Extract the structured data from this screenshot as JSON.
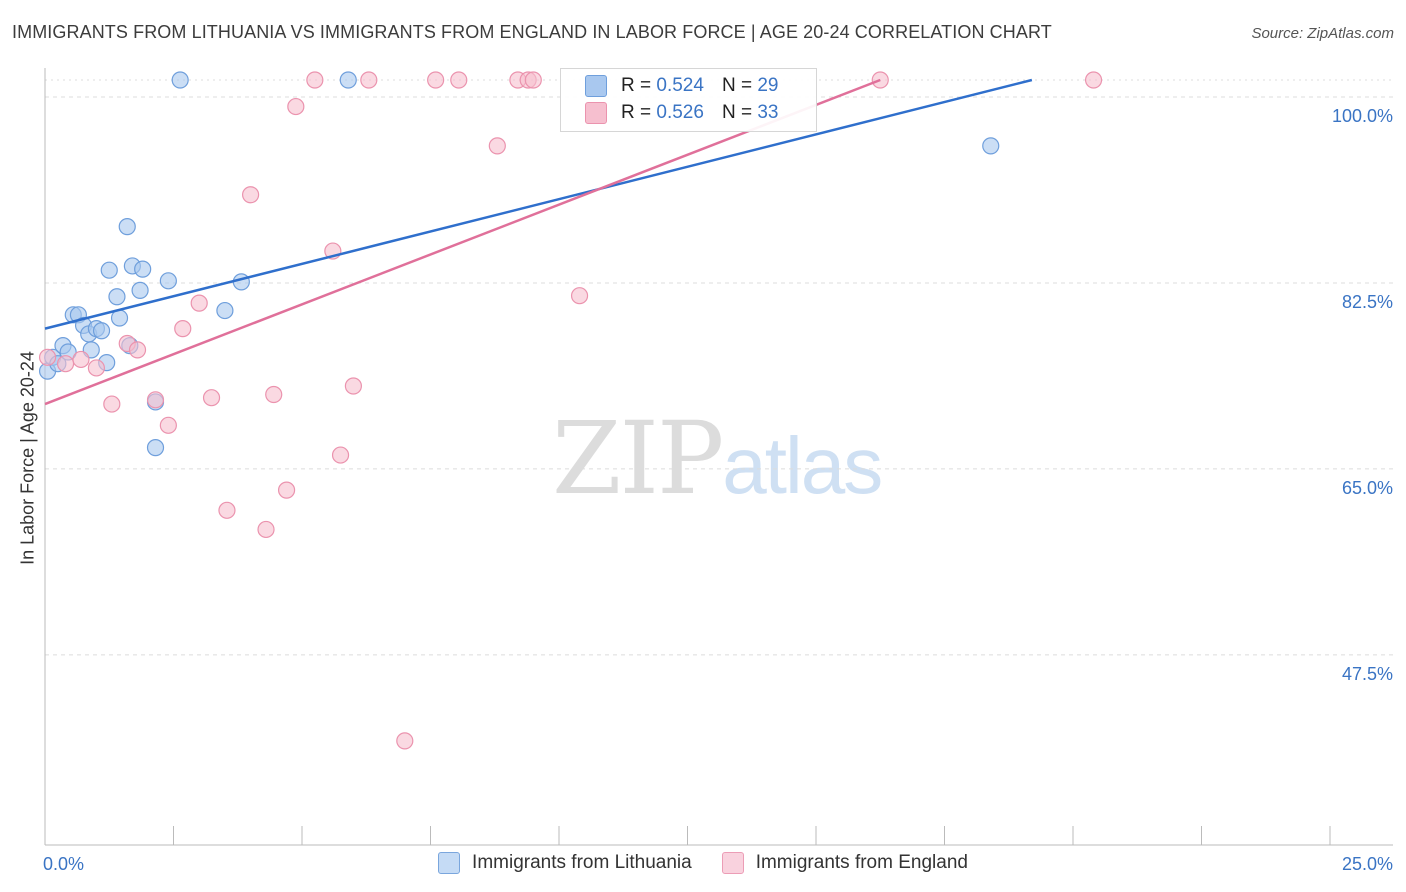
{
  "title": "IMMIGRANTS FROM LITHUANIA VS IMMIGRANTS FROM ENGLAND IN LABOR FORCE | AGE 20-24 CORRELATION CHART",
  "source": "Source: ZipAtlas.com",
  "watermark": {
    "zip": "ZIP",
    "atlas": "atlas"
  },
  "legend": {
    "rows": [
      {
        "r_label": "R = ",
        "r_value": "0.524",
        "n_label": "N = ",
        "n_value": "29"
      },
      {
        "r_label": "R = ",
        "r_value": "0.526",
        "n_label": "N = ",
        "n_value": "33"
      }
    ]
  },
  "colors": {
    "blue_fill": "#a9c8ef",
    "blue_stroke": "#6f9fdc",
    "blue_line": "#2f6fcc",
    "pink_fill": "#f6bfcf",
    "pink_stroke": "#eb93ae",
    "pink_line": "#e0709a",
    "tick_label": "#3a74c4",
    "grid": "#dcdcdc"
  },
  "chart_data": {
    "type": "scatter",
    "title": "IMMIGRANTS FROM LITHUANIA VS IMMIGRANTS FROM ENGLAND IN LABOR FORCE | AGE 20-24 CORRELATION CHART",
    "xlabel": "",
    "ylabel": "In Labor Force | Age 20-24",
    "xlim": [
      0,
      25
    ],
    "ylim": [
      29.6,
      101.6
    ],
    "x_tick_labels": [
      "0.0%",
      "25.0%"
    ],
    "y_ticks": [
      47.5,
      65.0,
      82.5,
      100.0
    ],
    "y_tick_labels": [
      "47.5%",
      "65.0%",
      "82.5%",
      "100.0%"
    ],
    "grid": "horizontal dashed",
    "series": [
      {
        "name": "Immigrants from Lithuania",
        "r": 0.524,
        "n": 29,
        "trend": {
          "x": [
            0.0,
            19.2
          ],
          "y": [
            78.2,
            101.6
          ]
        },
        "points": [
          {
            "x": 0.05,
            "y": 74.2
          },
          {
            "x": 0.15,
            "y": 75.5
          },
          {
            "x": 0.25,
            "y": 74.9
          },
          {
            "x": 0.35,
            "y": 76.6
          },
          {
            "x": 0.45,
            "y": 76.0
          },
          {
            "x": 0.55,
            "y": 79.5
          },
          {
            "x": 0.65,
            "y": 79.5
          },
          {
            "x": 0.75,
            "y": 78.5
          },
          {
            "x": 0.85,
            "y": 77.7
          },
          {
            "x": 0.9,
            "y": 76.2
          },
          {
            "x": 1.0,
            "y": 78.2
          },
          {
            "x": 1.1,
            "y": 78.0
          },
          {
            "x": 1.2,
            "y": 75.0
          },
          {
            "x": 1.25,
            "y": 83.7
          },
          {
            "x": 1.4,
            "y": 81.2
          },
          {
            "x": 1.45,
            "y": 79.2
          },
          {
            "x": 1.6,
            "y": 87.8
          },
          {
            "x": 1.65,
            "y": 76.6
          },
          {
            "x": 1.7,
            "y": 84.1
          },
          {
            "x": 1.85,
            "y": 81.8
          },
          {
            "x": 1.9,
            "y": 83.8
          },
          {
            "x": 2.15,
            "y": 71.3
          },
          {
            "x": 2.15,
            "y": 67.0
          },
          {
            "x": 2.4,
            "y": 82.7
          },
          {
            "x": 2.63,
            "y": 101.6
          },
          {
            "x": 3.5,
            "y": 79.9
          },
          {
            "x": 3.82,
            "y": 82.6
          },
          {
            "x": 5.9,
            "y": 101.6
          },
          {
            "x": 18.4,
            "y": 95.4
          }
        ]
      },
      {
        "name": "Immigrants from England",
        "r": 0.526,
        "n": 33,
        "trend": {
          "x": [
            0.0,
            16.25
          ],
          "y": [
            71.1,
            101.6
          ]
        },
        "points": [
          {
            "x": 0.05,
            "y": 75.5
          },
          {
            "x": 0.4,
            "y": 74.9
          },
          {
            "x": 0.7,
            "y": 75.3
          },
          {
            "x": 1.0,
            "y": 74.5
          },
          {
            "x": 1.3,
            "y": 71.1
          },
          {
            "x": 1.6,
            "y": 76.8
          },
          {
            "x": 1.8,
            "y": 76.2
          },
          {
            "x": 2.15,
            "y": 71.5
          },
          {
            "x": 2.4,
            "y": 69.1
          },
          {
            "x": 2.68,
            "y": 78.2
          },
          {
            "x": 3.0,
            "y": 80.6
          },
          {
            "x": 3.24,
            "y": 71.7
          },
          {
            "x": 3.54,
            "y": 61.1
          },
          {
            "x": 4.0,
            "y": 90.8
          },
          {
            "x": 4.3,
            "y": 59.3
          },
          {
            "x": 4.45,
            "y": 72.0
          },
          {
            "x": 4.7,
            "y": 63.0
          },
          {
            "x": 4.88,
            "y": 99.1
          },
          {
            "x": 5.25,
            "y": 101.6
          },
          {
            "x": 5.6,
            "y": 85.5
          },
          {
            "x": 5.75,
            "y": 66.3
          },
          {
            "x": 6.0,
            "y": 72.8
          },
          {
            "x": 6.3,
            "y": 101.6
          },
          {
            "x": 7.0,
            "y": 39.4
          },
          {
            "x": 7.6,
            "y": 101.6
          },
          {
            "x": 8.05,
            "y": 101.6
          },
          {
            "x": 8.8,
            "y": 95.4
          },
          {
            "x": 9.2,
            "y": 101.6
          },
          {
            "x": 9.4,
            "y": 101.6
          },
          {
            "x": 9.5,
            "y": 101.6
          },
          {
            "x": 10.4,
            "y": 81.3
          },
          {
            "x": 16.25,
            "y": 101.6
          },
          {
            "x": 20.4,
            "y": 101.6
          }
        ]
      }
    ]
  }
}
